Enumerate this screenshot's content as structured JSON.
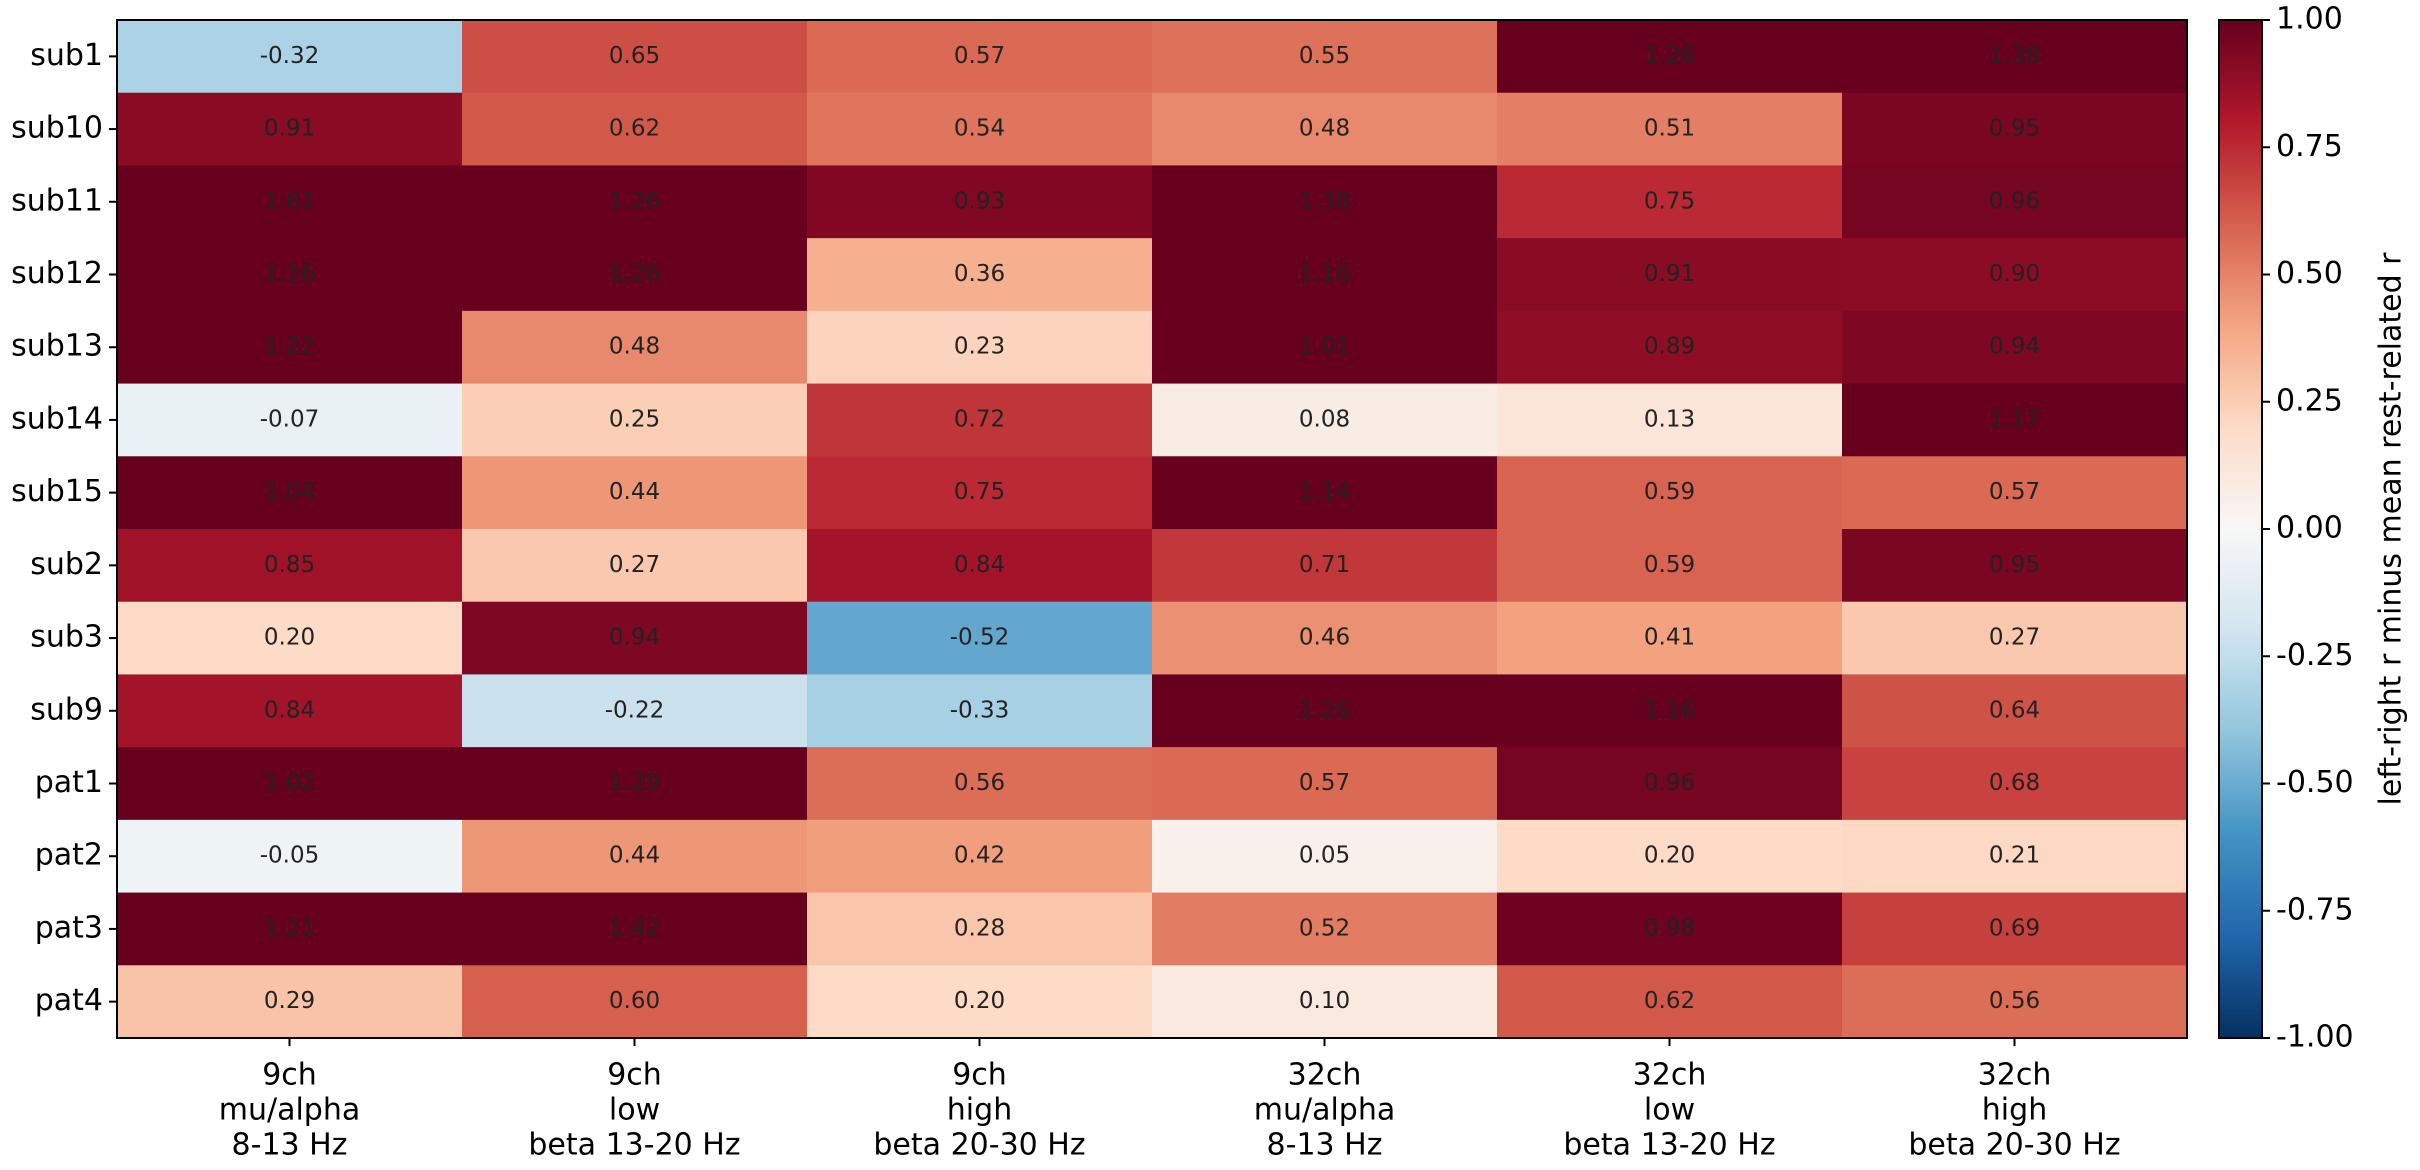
{
  "chart_data": {
    "type": "heatmap",
    "rows": [
      "sub1",
      "sub10",
      "sub11",
      "sub12",
      "sub13",
      "sub14",
      "sub15",
      "sub2",
      "sub3",
      "sub9",
      "pat1",
      "pat2",
      "pat3",
      "pat4"
    ],
    "columns": [
      [
        "9ch",
        "mu/alpha",
        "8-13 Hz"
      ],
      [
        "9ch",
        "low",
        "beta 13-20 Hz"
      ],
      [
        "9ch",
        "high",
        "beta 20-30 Hz"
      ],
      [
        "32ch",
        "mu/alpha",
        "8-13 Hz"
      ],
      [
        "32ch",
        "low",
        "beta 13-20 Hz"
      ],
      [
        "32ch",
        "high",
        "beta 20-30 Hz"
      ]
    ],
    "values": [
      [
        -0.32,
        0.65,
        0.57,
        0.55,
        1.26,
        1.38
      ],
      [
        0.91,
        0.62,
        0.54,
        0.48,
        0.51,
        0.95
      ],
      [
        1.61,
        1.26,
        0.93,
        1.38,
        0.75,
        0.96
      ],
      [
        1.16,
        1.26,
        0.36,
        1.16,
        0.91,
        0.9
      ],
      [
        1.22,
        0.48,
        0.23,
        1.01,
        0.89,
        0.94
      ],
      [
        -0.07,
        0.25,
        0.72,
        0.08,
        0.13,
        1.17
      ],
      [
        1.04,
        0.44,
        0.75,
        1.14,
        0.59,
        0.57
      ],
      [
        0.85,
        0.27,
        0.84,
        0.71,
        0.59,
        0.95
      ],
      [
        0.2,
        0.94,
        -0.52,
        0.46,
        0.41,
        0.27
      ],
      [
        0.84,
        -0.22,
        -0.33,
        1.26,
        1.16,
        0.64
      ],
      [
        1.02,
        1.29,
        0.56,
        0.57,
        0.96,
        0.68
      ],
      [
        -0.05,
        0.44,
        0.42,
        0.05,
        0.2,
        0.21
      ],
      [
        1.21,
        1.42,
        0.28,
        0.52,
        0.98,
        0.69
      ],
      [
        0.29,
        0.6,
        0.2,
        0.1,
        0.62,
        0.56
      ]
    ],
    "value_labels": [
      [
        "-0.32",
        "0.65",
        "0.57",
        "0.55",
        "1.26",
        "1.38"
      ],
      [
        "0.91",
        "0.62",
        "0.54",
        "0.48",
        "0.51",
        "0.95"
      ],
      [
        "1.61",
        "1.26",
        "0.93",
        "1.38",
        "0.75",
        "0.96"
      ],
      [
        "1.16",
        "1.26",
        "0.36",
        "1.16",
        "0.91",
        "0.90"
      ],
      [
        "1.22",
        "0.48",
        "0.23",
        "1.01",
        "0.89",
        "0.94"
      ],
      [
        "-0.07",
        "0.25",
        "0.72",
        "0.08",
        "0.13",
        "1.17"
      ],
      [
        "1.04",
        "0.44",
        "0.75",
        "1.14",
        "0.59",
        "0.57"
      ],
      [
        "0.85",
        "0.27",
        "0.84",
        "0.71",
        "0.59",
        "0.95"
      ],
      [
        "0.20",
        "0.94",
        "-0.52",
        "0.46",
        "0.41",
        "0.27"
      ],
      [
        "0.84",
        "-0.22",
        "-0.33",
        "1.26",
        "1.16",
        "0.64"
      ],
      [
        "1.02",
        "1.29",
        "0.56",
        "0.57",
        "0.96",
        "0.68"
      ],
      [
        "-0.05",
        "0.44",
        "0.42",
        "0.05",
        "0.20",
        "0.21"
      ],
      [
        "1.21",
        "1.42",
        "0.28",
        "0.52",
        "0.98",
        "0.69"
      ],
      [
        "0.29",
        "0.60",
        "0.20",
        "0.10",
        "0.62",
        "0.56"
      ]
    ],
    "colormap": "RdBu_r",
    "clim": [
      -1,
      1
    ],
    "colorbar_label": "left-right r minus mean rest-related r",
    "colorbar_ticks": [
      {
        "value": 1,
        "label": "1.00"
      },
      {
        "value": 0.75,
        "label": "0.75"
      },
      {
        "value": 0.5,
        "label": "0.50"
      },
      {
        "value": 0.25,
        "label": "0.25"
      },
      {
        "value": 0,
        "label": "0.00"
      },
      {
        "value": -0.25,
        "label": "-0.25"
      },
      {
        "value": -0.5,
        "label": "-0.50"
      },
      {
        "value": -0.75,
        "label": "-0.75"
      },
      {
        "value": -1,
        "label": "-1.00"
      }
    ]
  }
}
